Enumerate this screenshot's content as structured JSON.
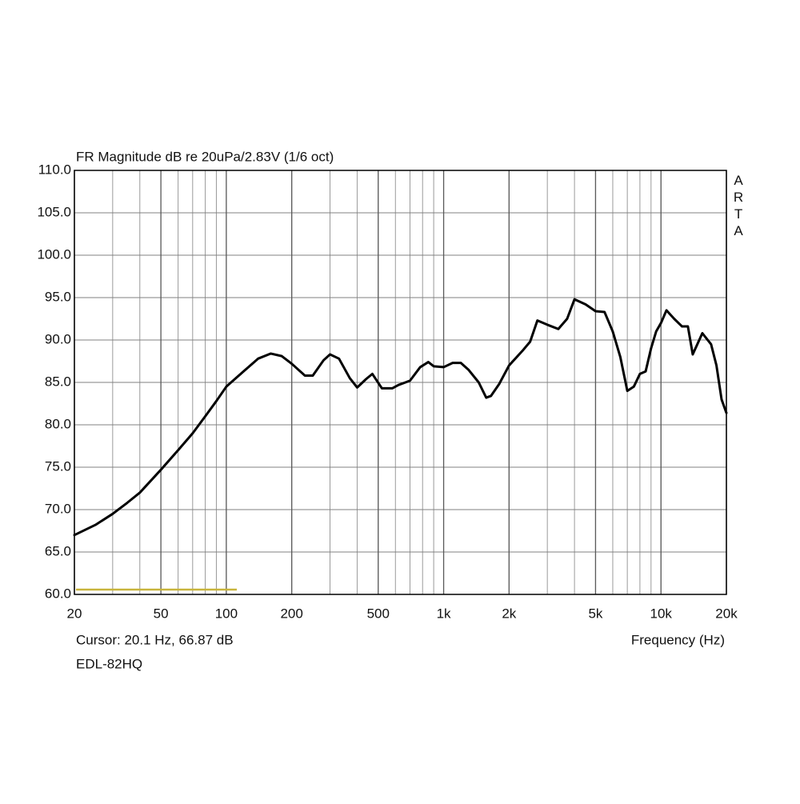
{
  "chart_data": {
    "type": "line",
    "title": "FR Magnitude dB re 20uPa/2.83V (1/6 oct)",
    "watermark": "ARTA",
    "annotation": "Cursor: 20.1 Hz, 66.87 dB",
    "x_label": "Frequency (Hz)",
    "x_scale": "log",
    "grid": true,
    "xlim": [
      20,
      20000
    ],
    "ylim": [
      60,
      110
    ],
    "xticks": [
      20,
      50,
      100,
      200,
      500,
      {
        "value": 1000,
        "label": "1k"
      },
      {
        "value": 2000,
        "label": "2k"
      },
      {
        "value": 5000,
        "label": "5k"
      },
      {
        "value": 10000,
        "label": "10k"
      },
      {
        "value": 20000,
        "label": "20k"
      }
    ],
    "yticks": [
      {
        "value": 60,
        "label": "60.0"
      },
      {
        "value": 65,
        "label": "65.0"
      },
      {
        "value": 70,
        "label": "70.0"
      },
      {
        "value": 75,
        "label": "75.0"
      },
      {
        "value": 80,
        "label": "80.0"
      },
      {
        "value": 85,
        "label": "85.0"
      },
      {
        "value": 90,
        "label": "90.0"
      },
      {
        "value": 95,
        "label": "95.0"
      },
      {
        "value": 100,
        "label": "100.0"
      },
      {
        "value": 105,
        "label": "105.0"
      },
      {
        "value": 110,
        "label": "110.0"
      }
    ],
    "x": [
      20,
      25,
      30,
      35,
      40,
      50,
      60,
      70,
      80,
      90,
      100,
      120,
      140,
      160,
      180,
      200,
      230,
      250,
      280,
      300,
      330,
      370,
      400,
      440,
      470,
      520,
      580,
      620,
      700,
      780,
      850,
      900,
      1000,
      1100,
      1200,
      1300,
      1450,
      1570,
      1650,
      1800,
      2000,
      2300,
      2500,
      2700,
      3000,
      3370,
      3700,
      4000,
      4500,
      5000,
      5500,
      6000,
      6500,
      7000,
      7500,
      8000,
      8500,
      9000,
      9500,
      10000,
      10600,
      11500,
      12500,
      13300,
      14000,
      15500,
      17000,
      18000,
      19000,
      20000
    ],
    "series": [
      {
        "name": "EDL-82HQ",
        "color": "#000000",
        "values": [
          67.0,
          68.2,
          69.5,
          70.8,
          72.0,
          74.7,
          77.0,
          79.0,
          81.0,
          82.8,
          84.5,
          86.3,
          87.8,
          88.4,
          88.1,
          87.2,
          85.8,
          85.8,
          87.6,
          88.3,
          87.8,
          85.5,
          84.4,
          85.4,
          86.0,
          84.3,
          84.3,
          84.7,
          85.2,
          86.8,
          87.4,
          86.9,
          86.8,
          87.3,
          87.3,
          86.5,
          85.0,
          83.2,
          83.4,
          84.8,
          87.0,
          88.7,
          89.8,
          92.3,
          91.8,
          91.3,
          92.5,
          94.8,
          94.2,
          93.4,
          93.3,
          91.0,
          88.0,
          84.0,
          84.5,
          86.0,
          86.3,
          89.0,
          91.0,
          92.0,
          93.5,
          92.5,
          91.6,
          91.6,
          88.3,
          90.8,
          89.5,
          87.0,
          83.0,
          81.4
        ]
      }
    ]
  }
}
